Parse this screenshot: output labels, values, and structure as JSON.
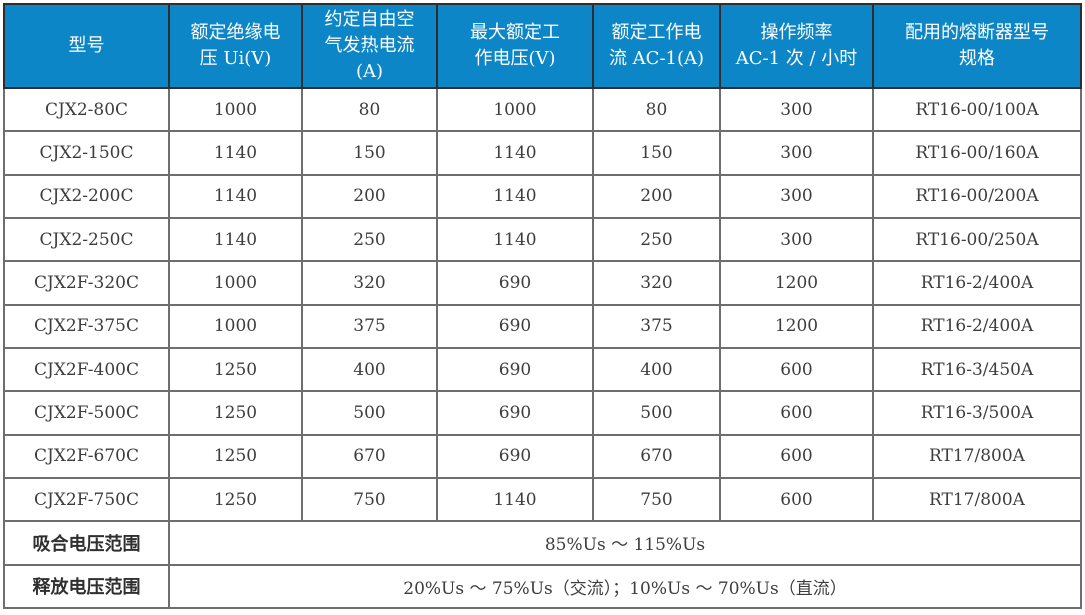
{
  "colors": {
    "header_bg": "#0c86c6",
    "header_text": "#ffffff",
    "body_text": "#3d3d3d",
    "grid_line": "#6e6e6e",
    "outer_border": "#2e2e2e",
    "row_bg": "#ffffff"
  },
  "table": {
    "columns": [
      "型号",
      "额定绝缘电\n压 Ui(V)",
      "约定自由空\n气发热电流\n(A)",
      "最大额定工\n作电压(V)",
      "额定工作电\n流 AC-1(A)",
      "操作频率\nAC-1 次 / 小时",
      "配用的熔断器型号\n规格"
    ],
    "rows": [
      [
        "CJX2-80C",
        "1000",
        "80",
        "1000",
        "80",
        "300",
        "RT16-00/100A"
      ],
      [
        "CJX2-150C",
        "1140",
        "150",
        "1140",
        "150",
        "300",
        "RT16-00/160A"
      ],
      [
        "CJX2-200C",
        "1140",
        "200",
        "1140",
        "200",
        "300",
        "RT16-00/200A"
      ],
      [
        "CJX2-250C",
        "1140",
        "250",
        "1140",
        "250",
        "300",
        "RT16-00/250A"
      ],
      [
        "CJX2F-320C",
        "1000",
        "320",
        "690",
        "320",
        "1200",
        "RT16-2/400A"
      ],
      [
        "CJX2F-375C",
        "1000",
        "375",
        "690",
        "375",
        "1200",
        "RT16-2/400A"
      ],
      [
        "CJX2F-400C",
        "1250",
        "400",
        "690",
        "400",
        "600",
        "RT16-3/450A"
      ],
      [
        "CJX2F-500C",
        "1250",
        "500",
        "690",
        "500",
        "600",
        "RT16-3/500A"
      ],
      [
        "CJX2F-670C",
        "1250",
        "670",
        "690",
        "670",
        "600",
        "RT17/800A"
      ],
      [
        "CJX2F-750C",
        "1250",
        "750",
        "1140",
        "750",
        "600",
        "RT17/800A"
      ]
    ],
    "footer_rows": [
      {
        "label": "吸合电压范围",
        "value": "85%Us ～ 115%Us"
      },
      {
        "label": "释放电压范围",
        "value": "20%Us ～ 75%Us（交流）；10%Us ～ 70%Us（直流）"
      }
    ]
  }
}
